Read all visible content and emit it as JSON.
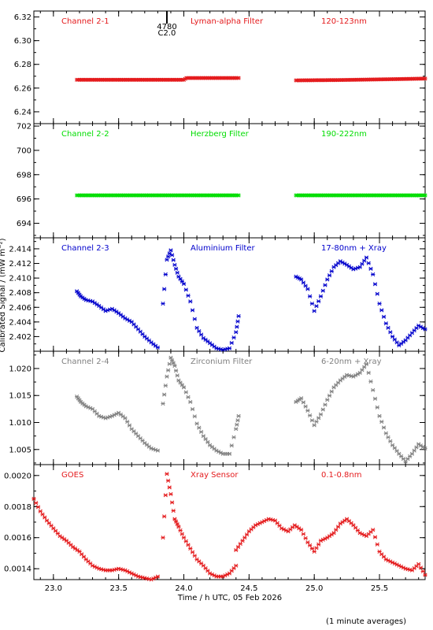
{
  "chart_data": {
    "type": "scatter",
    "xlabel": "Time / h UTC, 05 Feb 2026",
    "ylabel": "Calibrated Signal / (mW m⁻²)",
    "footer_note": "(1 minute averages)",
    "xlim": [
      22.85,
      25.85
    ],
    "x_ticks": [
      "23.0",
      "23.5",
      "24.0",
      "24.5",
      "25.0",
      "25.5"
    ],
    "flare_marker": {
      "x": 23.87,
      "label_top": "4780",
      "label_bottom": "C2.0"
    },
    "panels": [
      {
        "labels": [
          "Channel 2-1",
          "Lyman-alpha Filter",
          "120-123nm"
        ],
        "color": "#e41a1c",
        "ylim": [
          6.23,
          6.325
        ],
        "y_ticks": [
          "6.24",
          "6.26",
          "6.28",
          "6.30",
          "6.32"
        ],
        "segments": [
          {
            "x": [
              23.18,
              23.5,
              24.0,
              24.02,
              24.42
            ],
            "y": [
              6.267,
              6.267,
              6.267,
              6.2685,
              6.2685
            ]
          },
          {
            "x": [
              24.86,
              25.2,
              25.6,
              25.85
            ],
            "y": [
              6.2665,
              6.2668,
              6.2675,
              6.268
            ]
          }
        ]
      },
      {
        "labels": [
          "Channel 2-2",
          "Herzberg Filter",
          "190-222nm"
        ],
        "color": "#00dd00",
        "ylim": [
          692.8,
          702.2
        ],
        "y_ticks": [
          "694",
          "696",
          "698",
          "700",
          "702"
        ],
        "segments": [
          {
            "x": [
              23.18,
              23.8,
              24.42
            ],
            "y": [
              696.3,
              696.3,
              696.3
            ]
          },
          {
            "x": [
              24.86,
              25.4,
              25.85
            ],
            "y": [
              696.3,
              696.3,
              696.3
            ]
          }
        ]
      },
      {
        "labels": [
          "Channel 2-3",
          "Aluminium Filter",
          "17-80nm + Xray"
        ],
        "color": "#0000cc",
        "ylim": [
          2.4,
          2.4155
        ],
        "y_ticks": [
          "2.402",
          "2.404",
          "2.406",
          "2.408",
          "2.410",
          "2.412",
          "2.414"
        ],
        "segments": [
          {
            "x": [
              23.18,
              23.21,
              23.25,
              23.3,
              23.35,
              23.4,
              23.45,
              23.5,
              23.55,
              23.6,
              23.65,
              23.7,
              23.75,
              23.8
            ],
            "y": [
              2.4082,
              2.4075,
              2.407,
              2.4068,
              2.4062,
              2.4055,
              2.4058,
              2.4052,
              2.4045,
              2.404,
              2.403,
              2.402,
              2.4012,
              2.4005
            ]
          },
          {
            "x": [
              23.84,
              23.87,
              23.9,
              23.93,
              23.96,
              24.0,
              24.05,
              24.1,
              24.15,
              24.2,
              24.25,
              24.3,
              24.35,
              24.4,
              24.42
            ],
            "y": [
              2.4065,
              2.4125,
              2.4138,
              2.4118,
              2.4102,
              2.4092,
              2.4068,
              2.4032,
              2.4018,
              2.4011,
              2.4004,
              2.4002,
              2.4004,
              2.4026,
              2.4048
            ]
          },
          {
            "x": [
              24.86,
              24.9,
              24.95,
              25.0,
              25.05,
              25.1,
              25.15,
              25.2,
              25.25,
              25.3,
              25.35,
              25.4,
              25.45,
              25.5,
              25.55,
              25.6,
              25.65,
              25.7,
              25.75,
              25.8,
              25.85
            ],
            "y": [
              2.4102,
              2.4098,
              2.4085,
              2.4055,
              2.4075,
              2.4098,
              2.4115,
              2.4123,
              2.4118,
              2.4112,
              2.4115,
              2.4128,
              2.4105,
              2.4065,
              2.4038,
              2.402,
              2.4008,
              2.4015,
              2.4025,
              2.4035,
              2.403
            ]
          }
        ]
      },
      {
        "labels": [
          "Channel 2-4",
          "Zirconium Filter",
          "6-20nm + Xray"
        ],
        "color": "#808080",
        "ylim": [
          1.0022,
          1.0232
        ],
        "y_ticks": [
          "1.005",
          "1.010",
          "1.015",
          "1.020"
        ],
        "segments": [
          {
            "x": [
              23.18,
              23.21,
              23.25,
              23.3,
              23.35,
              23.4,
              23.45,
              23.5,
              23.55,
              23.6,
              23.65,
              23.7,
              23.75,
              23.8
            ],
            "y": [
              1.0148,
              1.0138,
              1.013,
              1.0125,
              1.0112,
              1.0108,
              1.0112,
              1.0118,
              1.0108,
              1.0088,
              1.0075,
              1.0062,
              1.0052,
              1.0048
            ]
          },
          {
            "x": [
              23.84,
              23.87,
              23.9,
              23.93,
              23.96,
              24.0,
              24.05,
              24.1,
              24.15,
              24.2,
              24.25,
              24.3,
              24.35,
              24.4,
              24.42
            ],
            "y": [
              1.0135,
              1.0185,
              1.022,
              1.0205,
              1.0178,
              1.0165,
              1.0138,
              1.0098,
              1.0075,
              1.0058,
              1.0048,
              1.0042,
              1.0042,
              1.0088,
              1.0112
            ]
          },
          {
            "x": [
              24.86,
              24.9,
              24.95,
              25.0,
              25.05,
              25.1,
              25.15,
              25.2,
              25.25,
              25.3,
              25.35,
              25.4,
              25.45,
              25.5,
              25.55,
              25.6,
              25.65,
              25.7,
              25.75,
              25.8,
              25.85
            ],
            "y": [
              1.0138,
              1.0145,
              1.0122,
              1.0095,
              1.0115,
              1.0142,
              1.0165,
              1.0178,
              1.0188,
              1.0185,
              1.0192,
              1.0208,
              1.016,
              1.0112,
              1.008,
              1.0058,
              1.0042,
              1.0028,
              1.0042,
              1.006,
              1.0052
            ]
          }
        ]
      },
      {
        "labels": [
          "GOES",
          "Xray Sensor",
          "0.1-0.8nm"
        ],
        "color": "#e41a1c",
        "ylim": [
          0.00133,
          0.00207
        ],
        "y_ticks": [
          "0.0014",
          "0.0016",
          "0.0018",
          "0.0020"
        ],
        "segments": [
          {
            "x": [
              22.85,
              22.9,
              22.95,
              23.0,
              23.05,
              23.1,
              23.15,
              23.2,
              23.25,
              23.3,
              23.35,
              23.4,
              23.45,
              23.5,
              23.55,
              23.6,
              23.65,
              23.7,
              23.75,
              23.8
            ],
            "y": [
              0.00185,
              0.00177,
              0.00171,
              0.00166,
              0.00161,
              0.00158,
              0.00154,
              0.00151,
              0.00146,
              0.00142,
              0.0014,
              0.00139,
              0.00139,
              0.0014,
              0.00139,
              0.00137,
              0.00135,
              0.00134,
              0.00133,
              0.00135
            ]
          },
          {
            "x": [
              23.84,
              23.87,
              23.9,
              23.93,
              23.96,
              24.0,
              24.05,
              24.1,
              24.15,
              24.2,
              24.25,
              24.3,
              24.35,
              24.4
            ],
            "y": [
              0.0016,
              0.00201,
              0.00188,
              0.00172,
              0.00167,
              0.0016,
              0.00153,
              0.00146,
              0.00142,
              0.00137,
              0.00135,
              0.00135,
              0.00137,
              0.00142
            ]
          },
          {
            "x": [
              24.4,
              24.45,
              24.5,
              24.55,
              24.6,
              24.65,
              24.7,
              24.75,
              24.8,
              24.85,
              24.9,
              24.95,
              25.0,
              25.05,
              25.1,
              25.15,
              25.2,
              25.25,
              25.3,
              25.35,
              25.4,
              25.45,
              25.5,
              25.55,
              25.6,
              25.65,
              25.7,
              25.75,
              25.8,
              25.85
            ],
            "y": [
              0.00152,
              0.00158,
              0.00164,
              0.00168,
              0.0017,
              0.00172,
              0.00171,
              0.00166,
              0.00164,
              0.00168,
              0.00165,
              0.00157,
              0.00151,
              0.00158,
              0.0016,
              0.00163,
              0.00169,
              0.00172,
              0.00168,
              0.00163,
              0.00161,
              0.00165,
              0.00151,
              0.00146,
              0.00144,
              0.00142,
              0.0014,
              0.00139,
              0.00143,
              0.00136
            ]
          }
        ]
      }
    ]
  }
}
